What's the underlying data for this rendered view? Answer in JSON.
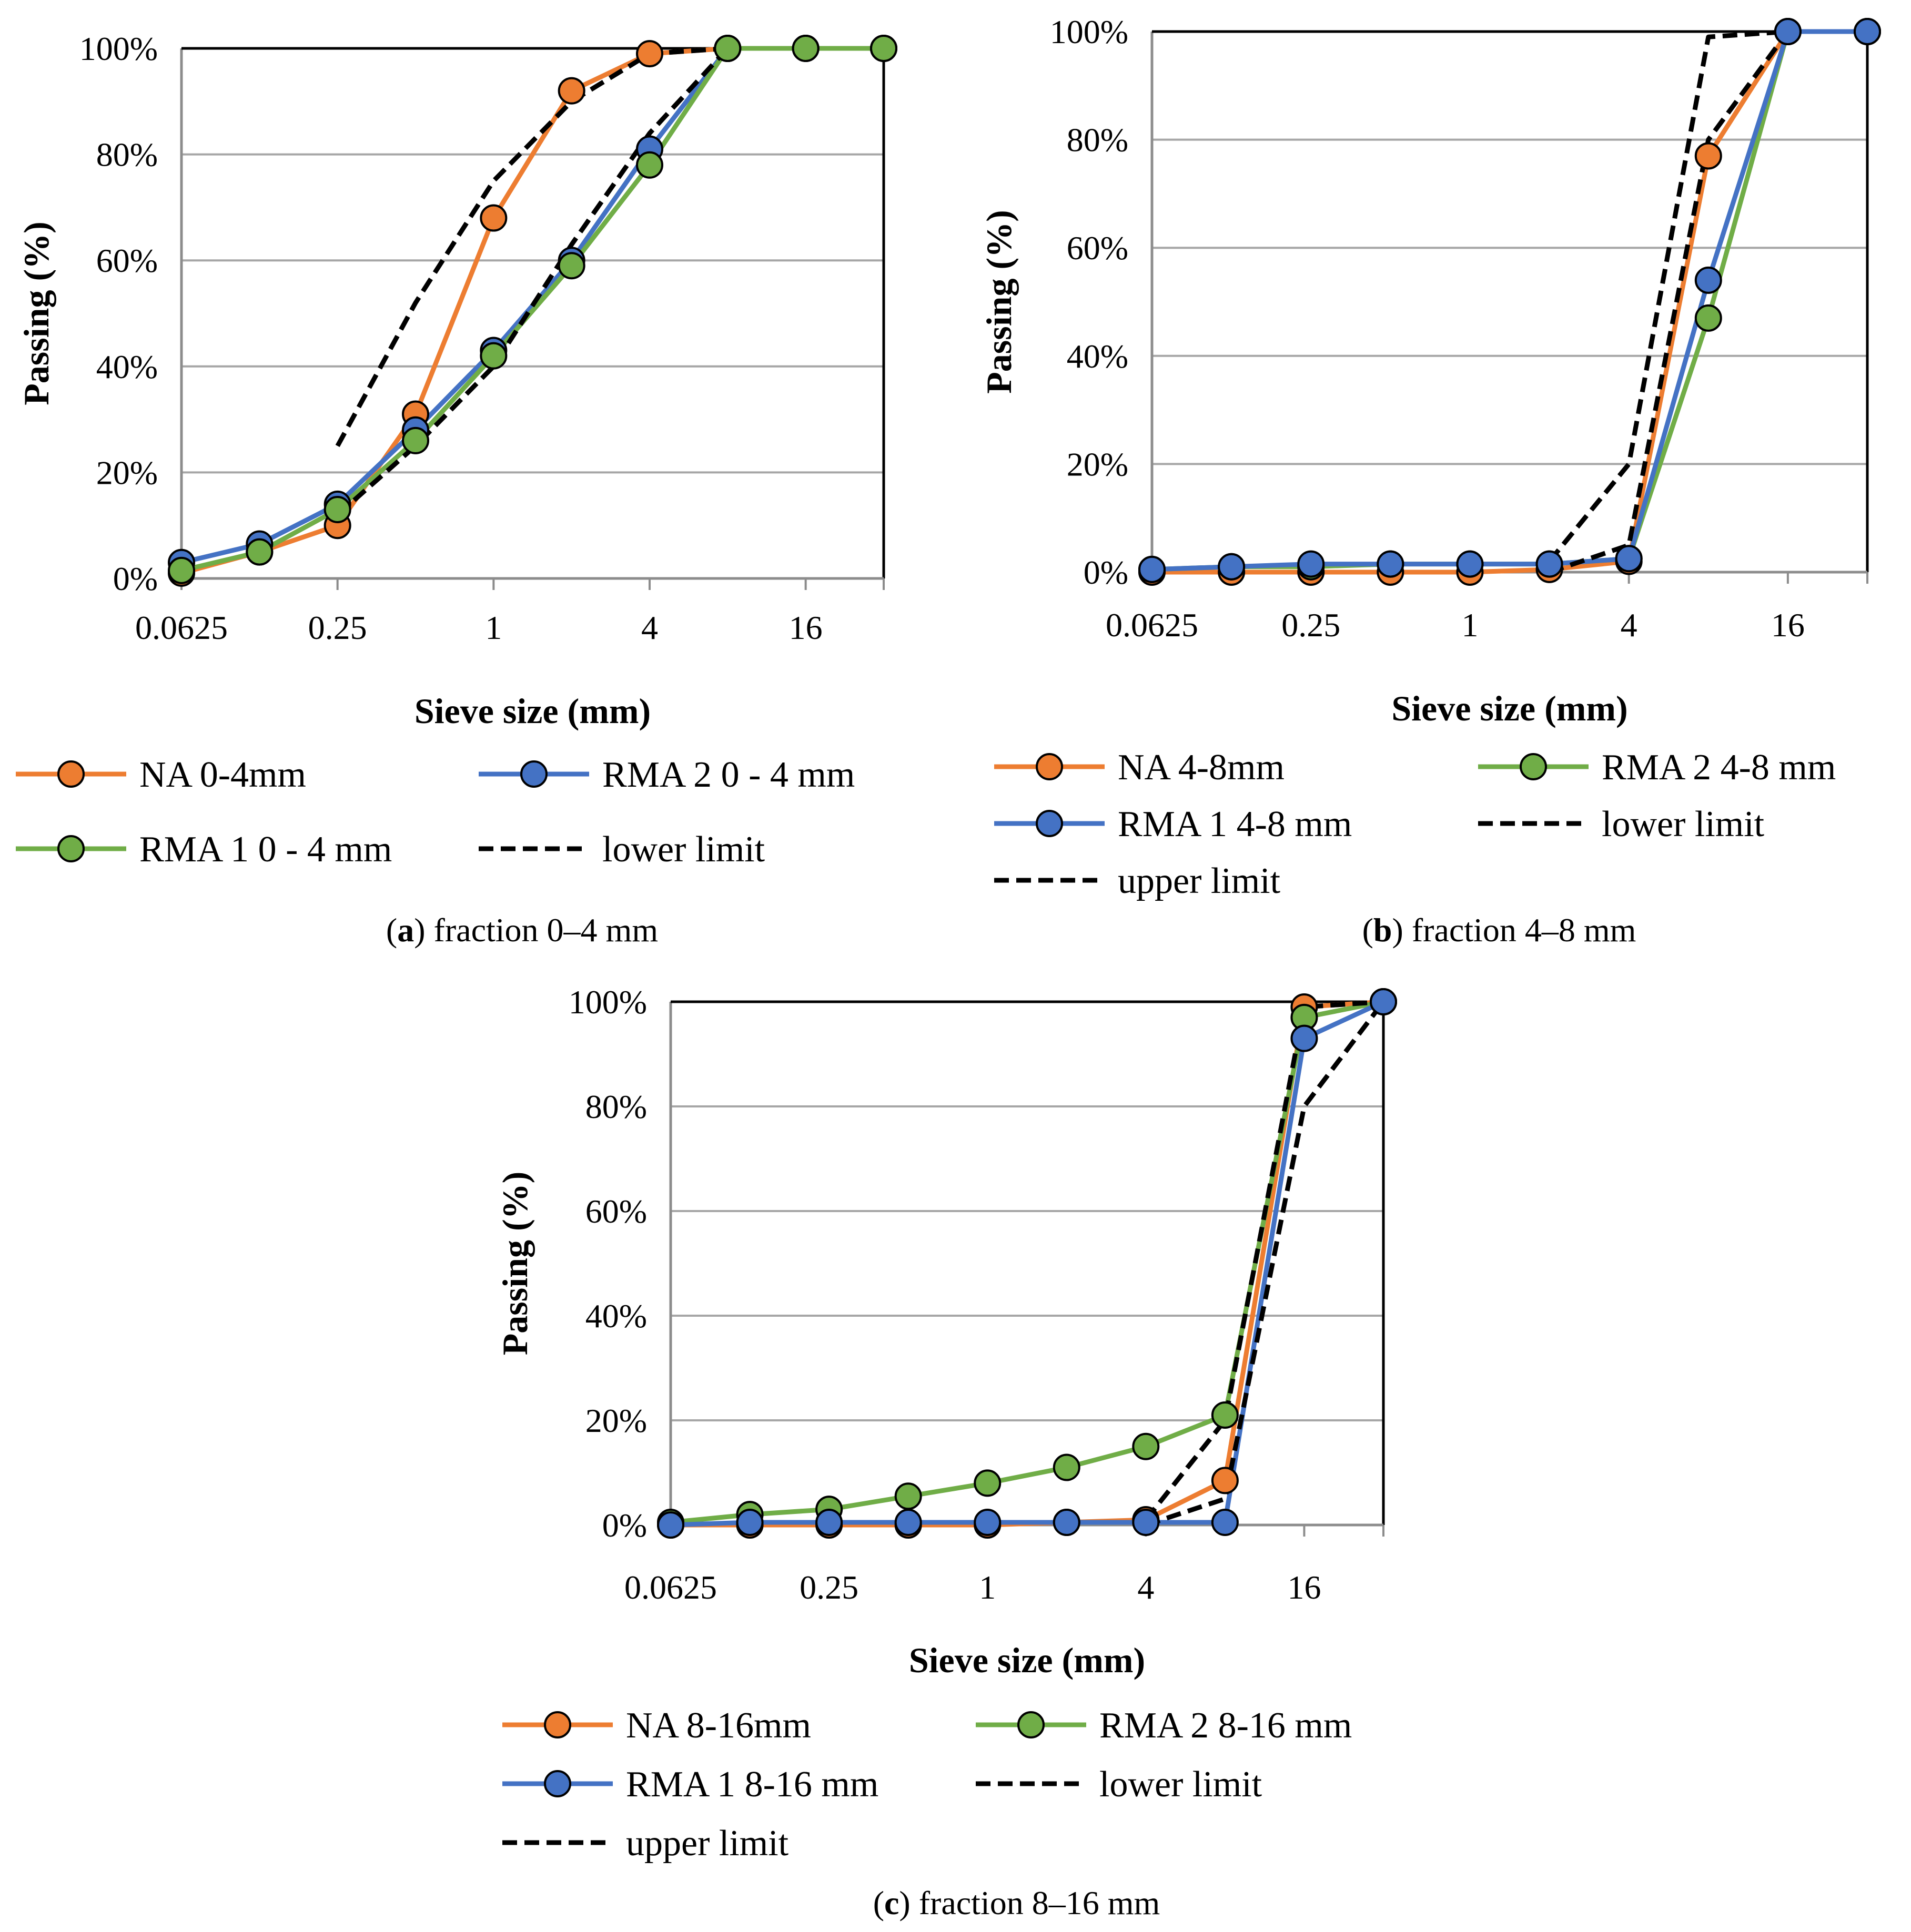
{
  "colors": {
    "orange": "#ED7D31",
    "green": "#70AD47",
    "blue": "#4472C4",
    "black": "#000000",
    "grid": "#A6A6A6"
  },
  "chart_data": [
    {
      "id": "a",
      "type": "line",
      "caption_letter": "a",
      "caption_text": "fraction 0–4 mm",
      "xlabel": "Sieve size (mm)",
      "ylabel": "Passing (%)",
      "xscale": "log2",
      "xlim": [
        0.0625,
        32
      ],
      "ylim": [
        0,
        100
      ],
      "xticks": [
        0.0625,
        0.25,
        1,
        4,
        16
      ],
      "xtick_labels": [
        "0.0625",
        "0.25",
        "1",
        "4",
        "16"
      ],
      "yticks": [
        0,
        20,
        40,
        60,
        80,
        100
      ],
      "ytick_labels": [
        "0%",
        "20%",
        "40%",
        "60%",
        "80%",
        "100%"
      ],
      "legend_columns": 2,
      "series": [
        {
          "name": "NA 0-4mm",
          "color": "orange",
          "dashed": false,
          "markers": true,
          "x": [
            0.0625,
            0.125,
            0.25,
            0.5,
            1,
            2,
            4,
            8,
            16,
            32
          ],
          "y": [
            1,
            5,
            10,
            31,
            68,
            92,
            99,
            100,
            100,
            100
          ]
        },
        {
          "name": "RMA 2 0 - 4 mm",
          "color": "blue",
          "dashed": false,
          "markers": true,
          "x": [
            0.0625,
            0.125,
            0.25,
            0.5,
            1,
            2,
            4,
            8,
            16,
            32
          ],
          "y": [
            3,
            6.5,
            14,
            28,
            43,
            60,
            81,
            100,
            100,
            100
          ]
        },
        {
          "name": "RMA 1 0 - 4 mm",
          "color": "green",
          "dashed": false,
          "markers": true,
          "x": [
            0.0625,
            0.125,
            0.25,
            0.5,
            1,
            2,
            4,
            8,
            16,
            32
          ],
          "y": [
            1.5,
            5,
            13,
            26,
            42,
            59,
            78,
            100,
            100,
            100
          ]
        },
        {
          "name": "lower limit",
          "color": "black",
          "dashed": true,
          "markers": false,
          "x": [
            0.25,
            0.5,
            1,
            2,
            4,
            8
          ],
          "y": [
            12,
            25,
            40,
            63,
            84,
            100
          ]
        },
        {
          "name": "",
          "color": "black",
          "dashed": true,
          "markers": false,
          "x": [
            0.25,
            0.5,
            1,
            2,
            4,
            8
          ],
          "y": [
            25,
            52,
            75,
            90,
            99,
            100
          ]
        }
      ]
    },
    {
      "id": "b",
      "type": "line",
      "caption_letter": "b",
      "caption_text": "fraction 4–8 mm",
      "xlabel": "Sieve size (mm)",
      "ylabel": "Passing (%)",
      "xscale": "log2",
      "xlim": [
        0.0625,
        32
      ],
      "ylim": [
        0,
        100
      ],
      "xticks": [
        0.0625,
        0.25,
        1,
        4,
        16
      ],
      "xtick_labels": [
        "0.0625",
        "0.25",
        "1",
        "4",
        "16"
      ],
      "yticks": [
        0,
        20,
        40,
        60,
        80,
        100
      ],
      "ytick_labels": [
        "0%",
        "20%",
        "40%",
        "60%",
        "80%",
        "100%"
      ],
      "legend_columns": 2,
      "series": [
        {
          "name": "NA 4-8mm",
          "color": "orange",
          "dashed": false,
          "markers": true,
          "x": [
            0.0625,
            0.125,
            0.25,
            0.5,
            1,
            2,
            4,
            8,
            16,
            32
          ],
          "y": [
            0,
            0,
            0,
            0,
            0,
            0.5,
            2,
            77,
            100,
            100
          ]
        },
        {
          "name": "RMA 2 4-8 mm",
          "color": "green",
          "dashed": false,
          "markers": true,
          "x": [
            0.0625,
            0.125,
            0.25,
            0.5,
            1,
            2,
            4,
            8,
            16,
            32
          ],
          "y": [
            0.5,
            1,
            1,
            1.5,
            1.5,
            1.5,
            2.5,
            47,
            100,
            100
          ]
        },
        {
          "name": "RMA 1 4-8 mm",
          "color": "blue",
          "dashed": false,
          "markers": true,
          "x": [
            0.0625,
            0.125,
            0.25,
            0.5,
            1,
            2,
            4,
            8,
            16,
            32
          ],
          "y": [
            0.5,
            1,
            1.5,
            1.5,
            1.5,
            1.5,
            2.5,
            54,
            100,
            100
          ]
        },
        {
          "name": "lower limit",
          "color": "black",
          "dashed": true,
          "markers": false,
          "x": [
            2,
            4,
            8,
            16
          ],
          "y": [
            0,
            5,
            80,
            100
          ]
        },
        {
          "name": "upper limit",
          "color": "black",
          "dashed": true,
          "markers": false,
          "x": [
            2,
            4,
            8,
            16
          ],
          "y": [
            2,
            20,
            99,
            100
          ]
        }
      ]
    },
    {
      "id": "c",
      "type": "line",
      "caption_letter": "c",
      "caption_text": "fraction 8–16 mm",
      "xlabel": "Sieve size (mm)",
      "ylabel": "Passing (%)",
      "xscale": "log2",
      "xlim": [
        0.0625,
        32
      ],
      "ylim": [
        0,
        100
      ],
      "xticks": [
        0.0625,
        0.25,
        1,
        4,
        16
      ],
      "xtick_labels": [
        "0.0625",
        "0.25",
        "1",
        "4",
        "16"
      ],
      "yticks": [
        0,
        20,
        40,
        60,
        80,
        100
      ],
      "ytick_labels": [
        "0%",
        "20%",
        "40%",
        "60%",
        "80%",
        "100%"
      ],
      "legend_columns": 2,
      "series": [
        {
          "name": "NA 8-16mm",
          "color": "orange",
          "dashed": false,
          "markers": true,
          "x": [
            0.0625,
            0.125,
            0.25,
            0.5,
            1,
            2,
            4,
            8,
            16,
            32
          ],
          "y": [
            0,
            0,
            0,
            0,
            0,
            0.5,
            1,
            8.5,
            99,
            100
          ]
        },
        {
          "name": "RMA 2 8-16 mm",
          "color": "green",
          "dashed": false,
          "markers": true,
          "x": [
            0.0625,
            0.125,
            0.25,
            0.5,
            1,
            2,
            4,
            8,
            16,
            32
          ],
          "y": [
            0.5,
            2,
            3,
            5.5,
            8,
            11,
            15,
            21,
            97,
            100
          ]
        },
        {
          "name": "RMA 1 8-16 mm",
          "color": "blue",
          "dashed": false,
          "markers": true,
          "x": [
            0.0625,
            0.125,
            0.25,
            0.5,
            1,
            2,
            4,
            8,
            16,
            32
          ],
          "y": [
            0,
            0.5,
            0.5,
            0.5,
            0.5,
            0.5,
            0.5,
            0.5,
            93,
            100
          ]
        },
        {
          "name": "lower limit",
          "color": "black",
          "dashed": true,
          "markers": false,
          "x": [
            4,
            8,
            16,
            32
          ],
          "y": [
            0,
            5,
            80,
            100
          ]
        },
        {
          "name": "upper limit",
          "color": "black",
          "dashed": true,
          "markers": false,
          "x": [
            4,
            8,
            16,
            32
          ],
          "y": [
            1,
            20,
            99,
            100
          ]
        }
      ]
    }
  ]
}
